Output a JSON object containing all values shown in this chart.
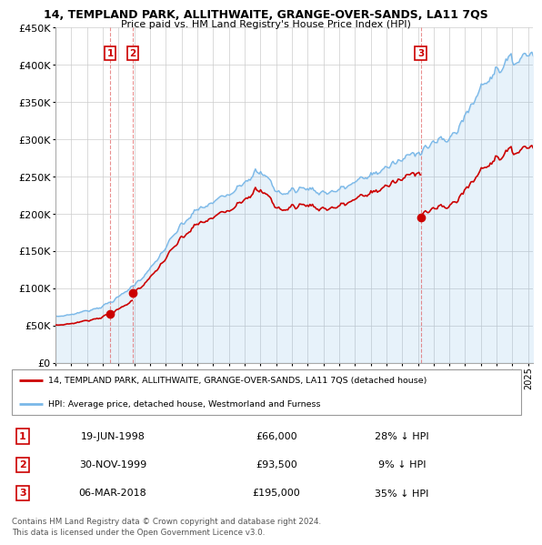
{
  "title": "14, TEMPLAND PARK, ALLITHWAITE, GRANGE-OVER-SANDS, LA11 7QS",
  "subtitle": "Price paid vs. HM Land Registry's House Price Index (HPI)",
  "ylim": [
    0,
    450000
  ],
  "yticks": [
    0,
    50000,
    100000,
    150000,
    200000,
    250000,
    300000,
    350000,
    400000,
    450000
  ],
  "ytick_labels": [
    "£0",
    "£50K",
    "£100K",
    "£150K",
    "£200K",
    "£250K",
    "£300K",
    "£350K",
    "£400K",
    "£450K"
  ],
  "xlim_start": 1995.3,
  "xlim_end": 2025.3,
  "hpi_color": "#7ab8e8",
  "hpi_fill_color": "#ddeeff",
  "price_color": "#cc0000",
  "transactions": [
    {
      "date": 1998.47,
      "price": 66000,
      "label": "1"
    },
    {
      "date": 1999.92,
      "price": 93500,
      "label": "2"
    },
    {
      "date": 2018.18,
      "price": 195000,
      "label": "3"
    }
  ],
  "legend_line1": "14, TEMPLAND PARK, ALLITHWAITE, GRANGE-OVER-SANDS, LA11 7QS (detached house)",
  "legend_line2": "HPI: Average price, detached house, Westmorland and Furness",
  "table_rows": [
    {
      "num": "1",
      "date": "19-JUN-1998",
      "price": "£66,000",
      "hpi": "28% ↓ HPI"
    },
    {
      "num": "2",
      "date": "30-NOV-1999",
      "price": "£93,500",
      "hpi": "9% ↓ HPI"
    },
    {
      "num": "3",
      "date": "06-MAR-2018",
      "price": "£195,000",
      "hpi": "35% ↓ HPI"
    }
  ],
  "footer": "Contains HM Land Registry data © Crown copyright and database right 2024.\nThis data is licensed under the Open Government Licence v3.0."
}
